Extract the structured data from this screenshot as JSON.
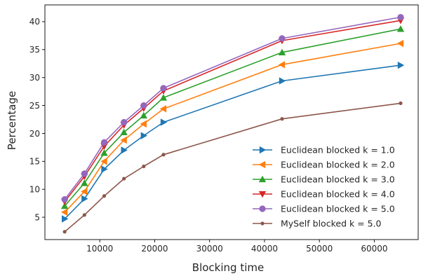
{
  "chart_data": {
    "type": "line",
    "title": "",
    "xlabel": "Blocking time",
    "ylabel": "Percentage",
    "xlim": [
      0,
      68000
    ],
    "ylim": [
      1,
      43
    ],
    "xticks": [
      10000,
      20000,
      30000,
      40000,
      50000,
      60000
    ],
    "xtick_labels": [
      "10000",
      "20000",
      "30000",
      "40000",
      "50000",
      "60000"
    ],
    "yticks": [
      5,
      10,
      15,
      20,
      25,
      30,
      35,
      40
    ],
    "ytick_labels": [
      "5",
      "10",
      "15",
      "20",
      "25",
      "30",
      "35",
      "40"
    ],
    "grid": false,
    "legend_position": "lower-right",
    "x": [
      3600,
      7200,
      10800,
      14400,
      18000,
      21600,
      43200,
      64800
    ],
    "series": [
      {
        "name": "Euclidean blocked k = 1.0",
        "color": "#1f77b4",
        "marker": "triangle-right",
        "values": [
          4.7,
          8.3,
          13.6,
          17.0,
          19.6,
          22.0,
          29.4,
          32.2
        ]
      },
      {
        "name": "Euclidean blocked k = 2.0",
        "color": "#ff7f0e",
        "marker": "triangle-left",
        "values": [
          5.9,
          9.6,
          15.0,
          18.8,
          21.7,
          24.4,
          32.3,
          36.1
        ]
      },
      {
        "name": "Euclidean blocked k = 3.0",
        "color": "#2ca02c",
        "marker": "triangle-up",
        "values": [
          7.0,
          11.1,
          16.5,
          20.2,
          23.2,
          26.4,
          34.5,
          38.7
        ]
      },
      {
        "name": "Euclidean blocked k = 4.0",
        "color": "#d62728",
        "marker": "triangle-down",
        "values": [
          7.8,
          12.3,
          17.7,
          21.5,
          24.5,
          27.6,
          36.6,
          40.2
        ]
      },
      {
        "name": "Euclidean blocked k = 5.0",
        "color": "#9467bd",
        "marker": "circle",
        "values": [
          8.2,
          12.8,
          18.4,
          22.0,
          25.0,
          28.1,
          37.0,
          40.8
        ]
      },
      {
        "name": "MySelf blocked k = 5.0",
        "color": "#8c564b",
        "marker": "small-circle",
        "values": [
          2.4,
          5.4,
          8.8,
          11.9,
          14.1,
          16.2,
          22.6,
          25.4
        ]
      }
    ]
  }
}
